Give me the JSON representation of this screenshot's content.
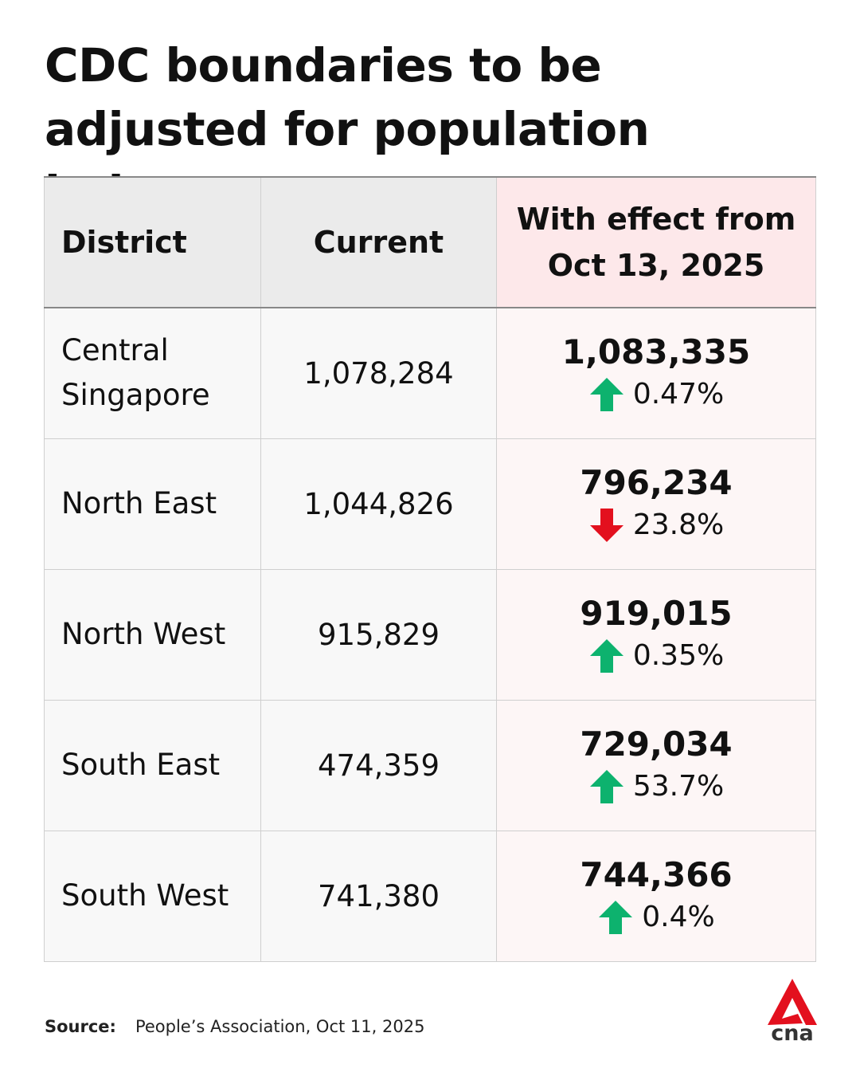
{
  "title": "CDC boundaries to be adjusted for population balance",
  "colors": {
    "up": "#0db26e",
    "down": "#e3101e",
    "header_highlight": "#fde8ea"
  },
  "chart_data": {
    "type": "table",
    "title": "CDC boundaries to be adjusted for population balance",
    "columns": [
      "District",
      "Current",
      "With effect from Oct 13, 2025"
    ],
    "header_highlight_line1": "With effect from",
    "header_highlight_line2": "Oct 13, 2025",
    "rows": [
      {
        "district": "Central Singapore",
        "current": "1,078,284",
        "new": "1,083,335",
        "direction": "up",
        "change": "0.47%"
      },
      {
        "district": "North East",
        "current": "1,044,826",
        "new": "796,234",
        "direction": "down",
        "change": "23.8%"
      },
      {
        "district": "North West",
        "current": "915,829",
        "new": "919,015",
        "direction": "up",
        "change": "0.35%"
      },
      {
        "district": "South East",
        "current": "474,359",
        "new": "729,034",
        "direction": "up",
        "change": "53.7%"
      },
      {
        "district": "South West",
        "current": "741,380",
        "new": "744,366",
        "direction": "up",
        "change": "0.4%"
      }
    ]
  },
  "source": {
    "label": "Source:",
    "text": "People’s Association, Oct 11, 2025"
  },
  "logo": {
    "text": "cna",
    "icon": "cna-logo-icon"
  }
}
